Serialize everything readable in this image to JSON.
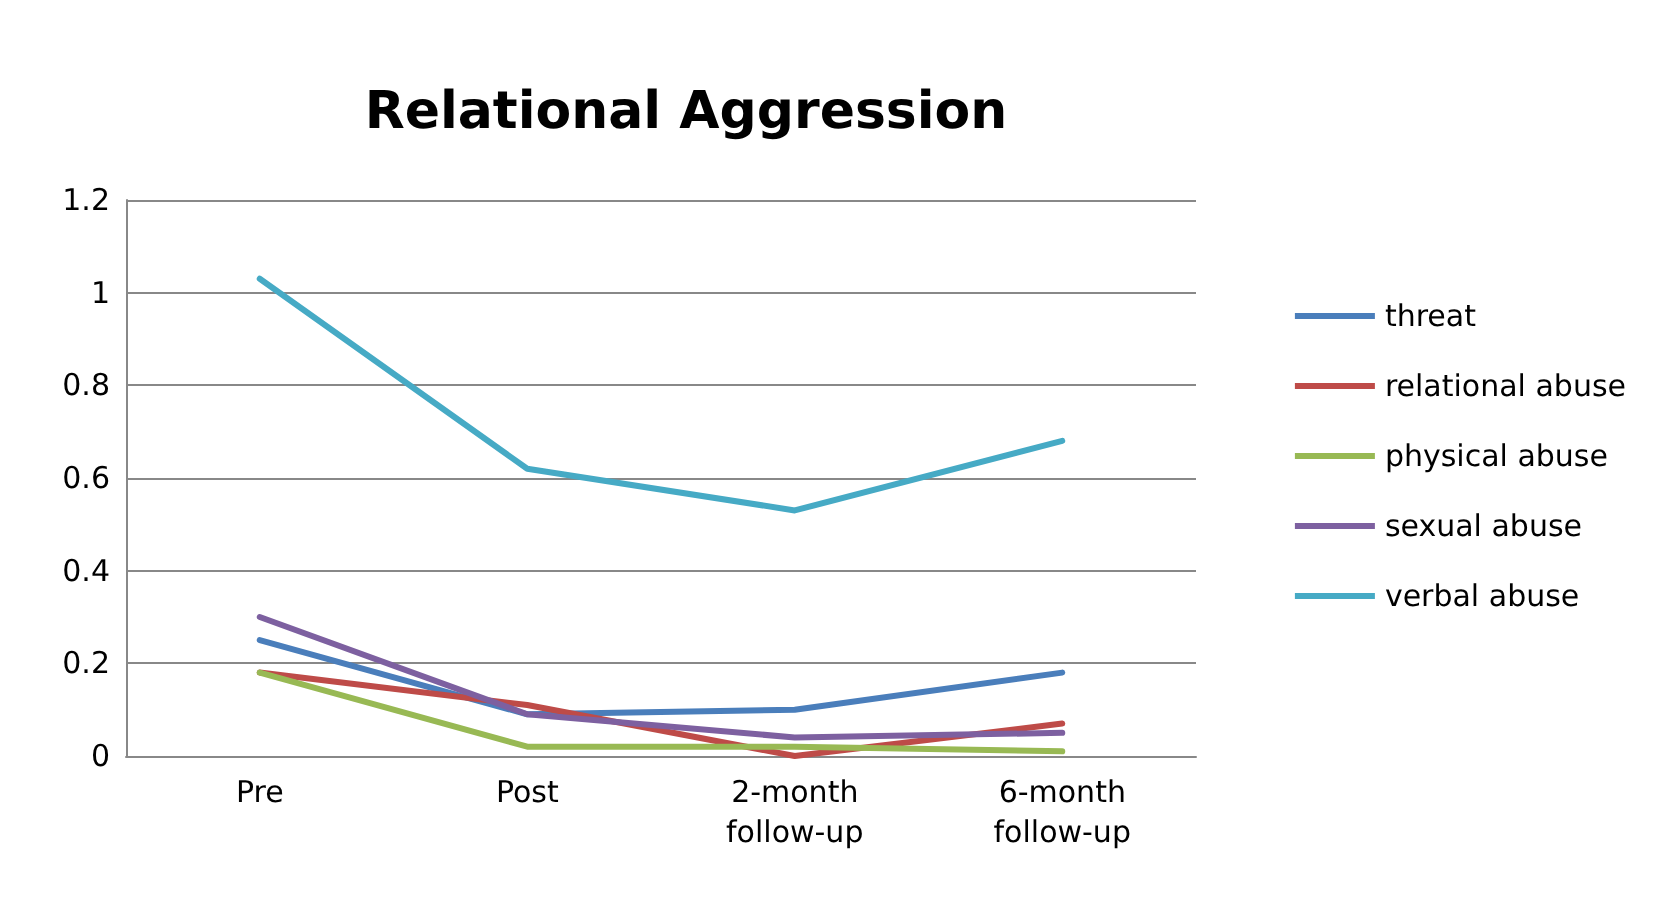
{
  "chart_data": {
    "type": "line",
    "title": "Relational Aggression",
    "categories": [
      "Pre",
      "Post",
      "2-month\nfollow-up",
      "6-month\nfollow-up"
    ],
    "series": [
      {
        "name": "threat",
        "color": "#4a7ebb",
        "values": [
          0.25,
          0.09,
          0.1,
          0.18
        ]
      },
      {
        "name": "relational abuse",
        "color": "#be4b48",
        "values": [
          0.18,
          0.11,
          0,
          0.07
        ]
      },
      {
        "name": "physical abuse",
        "color": "#98b954",
        "values": [
          0.18,
          0.02,
          0.02,
          0.01
        ]
      },
      {
        "name": "sexual abuse",
        "color": "#7d60a0",
        "values": [
          0.3,
          0.09,
          0.04,
          0.05
        ]
      },
      {
        "name": "verbal abuse",
        "color": "#46aac5",
        "values": [
          1.03,
          0.62,
          0.53,
          0.68
        ]
      }
    ],
    "ylim": [
      0,
      1.2
    ],
    "yticks": [
      0,
      0.2,
      0.4,
      0.6,
      0.8,
      1,
      1.2
    ],
    "grid": "y",
    "legend": "right",
    "marker": "none",
    "line_style": "solid"
  }
}
